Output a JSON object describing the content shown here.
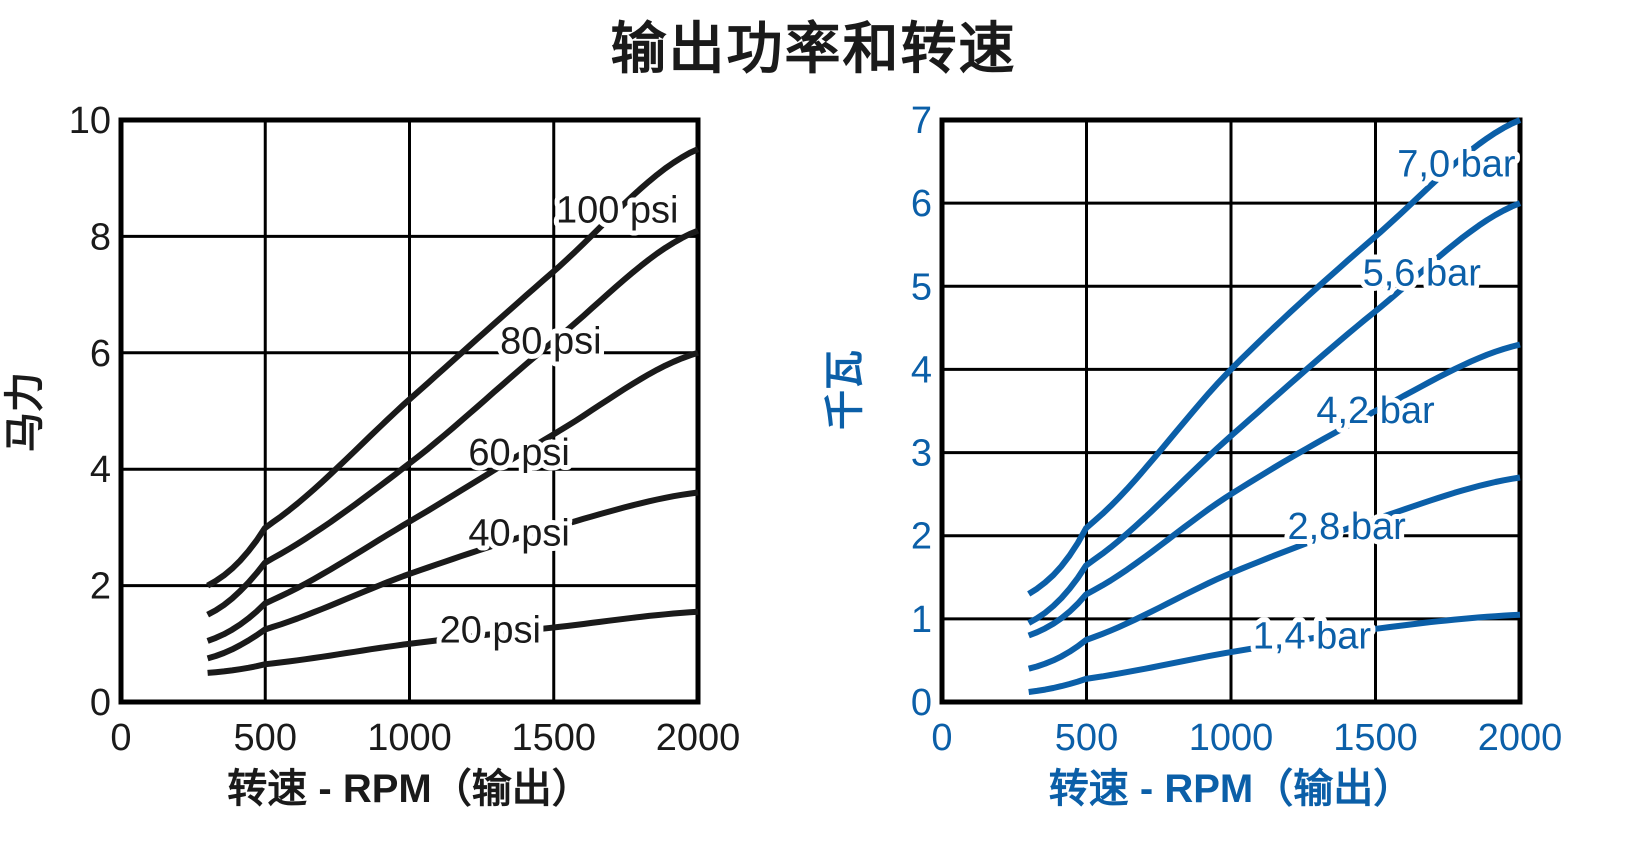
{
  "title": "输出功率和转速",
  "chart_data": [
    {
      "type": "line",
      "color": "#1a1a1a",
      "xlabel": "转速 - RPM（输出）",
      "ylabel": "马力",
      "xlim": [
        0,
        2000
      ],
      "ylim": [
        0,
        10
      ],
      "xticks": [
        0,
        500,
        1000,
        1500,
        2000
      ],
      "yticks": [
        0,
        2,
        4,
        6,
        8,
        10
      ],
      "xtick_labels": [
        "0",
        "500",
        "1000",
        "1500",
        "2000"
      ],
      "ytick_labels": [
        "0",
        "2",
        "4",
        "6",
        "8",
        "10"
      ],
      "grid": true,
      "series": [
        {
          "name": "20 psi",
          "x": [
            300,
            500,
            1000,
            1500,
            2000
          ],
          "y": [
            0.5,
            0.65,
            1.0,
            1.28,
            1.55
          ]
        },
        {
          "name": "40 psi",
          "x": [
            300,
            500,
            1000,
            1500,
            2000
          ],
          "y": [
            0.75,
            1.25,
            2.2,
            3.0,
            3.6
          ]
        },
        {
          "name": "60 psi",
          "x": [
            300,
            500,
            1000,
            1500,
            2000
          ],
          "y": [
            1.05,
            1.7,
            3.1,
            4.6,
            6.0
          ]
        },
        {
          "name": "80 psi",
          "x": [
            300,
            500,
            1000,
            1500,
            2000
          ],
          "y": [
            1.5,
            2.4,
            4.1,
            6.2,
            8.1
          ]
        },
        {
          "name": "100 psi",
          "x": [
            300,
            500,
            1000,
            1500,
            2000
          ],
          "y": [
            2.0,
            3.0,
            5.2,
            7.4,
            9.5
          ]
        }
      ]
    },
    {
      "type": "line",
      "color": "#0b5fa8",
      "xlabel": "转速 - RPM（输出）",
      "ylabel": "千瓦",
      "xlim": [
        0,
        2000
      ],
      "ylim": [
        0,
        7
      ],
      "xticks": [
        0,
        500,
        1000,
        1500,
        2000
      ],
      "yticks": [
        0,
        1,
        2,
        3,
        4,
        5,
        6,
        7
      ],
      "xtick_labels": [
        "0",
        "500",
        "1000",
        "1500",
        "2000"
      ],
      "ytick_labels": [
        "0",
        "1",
        "2",
        "3",
        "4",
        "5",
        "6",
        "7"
      ],
      "grid": true,
      "series": [
        {
          "name": "1,4 bar",
          "x": [
            300,
            500,
            1000,
            1500,
            2000
          ],
          "y": [
            0.12,
            0.28,
            0.6,
            0.88,
            1.05
          ]
        },
        {
          "name": "2,8 bar",
          "x": [
            300,
            500,
            1000,
            1500,
            2000
          ],
          "y": [
            0.4,
            0.75,
            1.55,
            2.2,
            2.7
          ]
        },
        {
          "name": "4,2 bar",
          "x": [
            300,
            500,
            1000,
            1500,
            2000
          ],
          "y": [
            0.8,
            1.3,
            2.5,
            3.5,
            4.3
          ]
        },
        {
          "name": "5,6 bar",
          "x": [
            300,
            500,
            1000,
            1500,
            2000
          ],
          "y": [
            0.95,
            1.65,
            3.2,
            4.7,
            6.0
          ]
        },
        {
          "name": "7,0 bar",
          "x": [
            300,
            500,
            1000,
            1500,
            2000
          ],
          "y": [
            1.3,
            2.1,
            4.0,
            5.6,
            7.0
          ]
        }
      ]
    }
  ]
}
